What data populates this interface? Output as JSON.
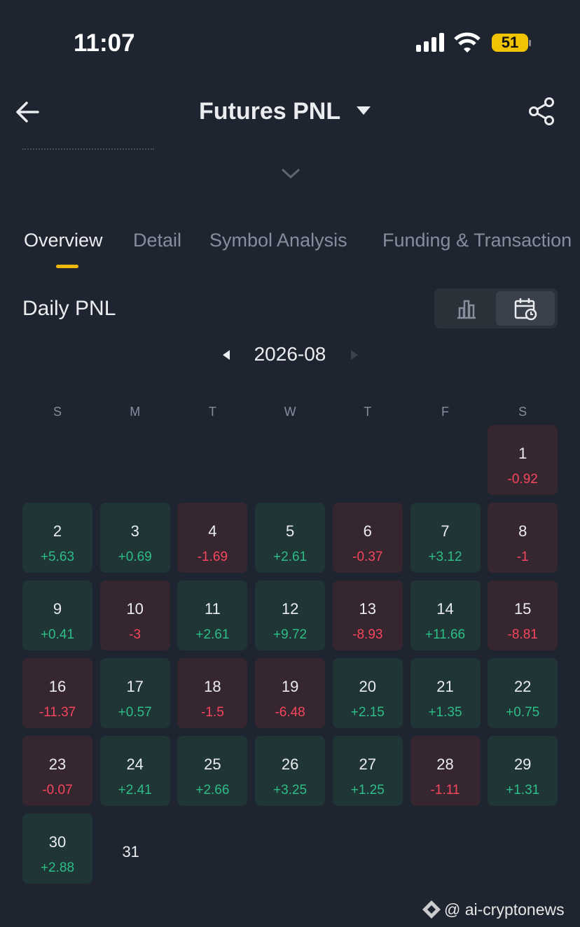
{
  "status_bar": {
    "time": "11:07",
    "battery": "51"
  },
  "header": {
    "title": "Futures PNL"
  },
  "tabs": [
    "Overview",
    "Detail",
    "Symbol Analysis",
    "Funding & Transaction"
  ],
  "section": {
    "title": "Daily PNL"
  },
  "calendar": {
    "month": "2026-08",
    "weekdays": [
      "S",
      "M",
      "T",
      "W",
      "T",
      "F",
      "S"
    ],
    "days": [
      {
        "day": 1,
        "pnl": "-0.92"
      },
      {
        "day": 2,
        "pnl": "+5.63"
      },
      {
        "day": 3,
        "pnl": "+0.69"
      },
      {
        "day": 4,
        "pnl": "-1.69"
      },
      {
        "day": 5,
        "pnl": "+2.61"
      },
      {
        "day": 6,
        "pnl": "-0.37"
      },
      {
        "day": 7,
        "pnl": "+3.12"
      },
      {
        "day": 8,
        "pnl": "-1"
      },
      {
        "day": 9,
        "pnl": "+0.41"
      },
      {
        "day": 10,
        "pnl": "-3"
      },
      {
        "day": 11,
        "pnl": "+2.61"
      },
      {
        "day": 12,
        "pnl": "+9.72"
      },
      {
        "day": 13,
        "pnl": "-8.93"
      },
      {
        "day": 14,
        "pnl": "+11.66"
      },
      {
        "day": 15,
        "pnl": "-8.81"
      },
      {
        "day": 16,
        "pnl": "-11.37"
      },
      {
        "day": 17,
        "pnl": "+0.57"
      },
      {
        "day": 18,
        "pnl": "-1.5"
      },
      {
        "day": 19,
        "pnl": "-6.48"
      },
      {
        "day": 20,
        "pnl": "+2.15"
      },
      {
        "day": 21,
        "pnl": "+1.35"
      },
      {
        "day": 22,
        "pnl": "+0.75"
      },
      {
        "day": 23,
        "pnl": "-0.07"
      },
      {
        "day": 24,
        "pnl": "+2.41"
      },
      {
        "day": 25,
        "pnl": "+2.66"
      },
      {
        "day": 26,
        "pnl": "+3.25"
      },
      {
        "day": 27,
        "pnl": "+1.25"
      },
      {
        "day": 28,
        "pnl": "-1.11"
      },
      {
        "day": 29,
        "pnl": "+1.31"
      },
      {
        "day": 30,
        "pnl": "+2.88"
      },
      {
        "day": 31
      }
    ]
  },
  "watermark": "@ ai-cryptonews"
}
